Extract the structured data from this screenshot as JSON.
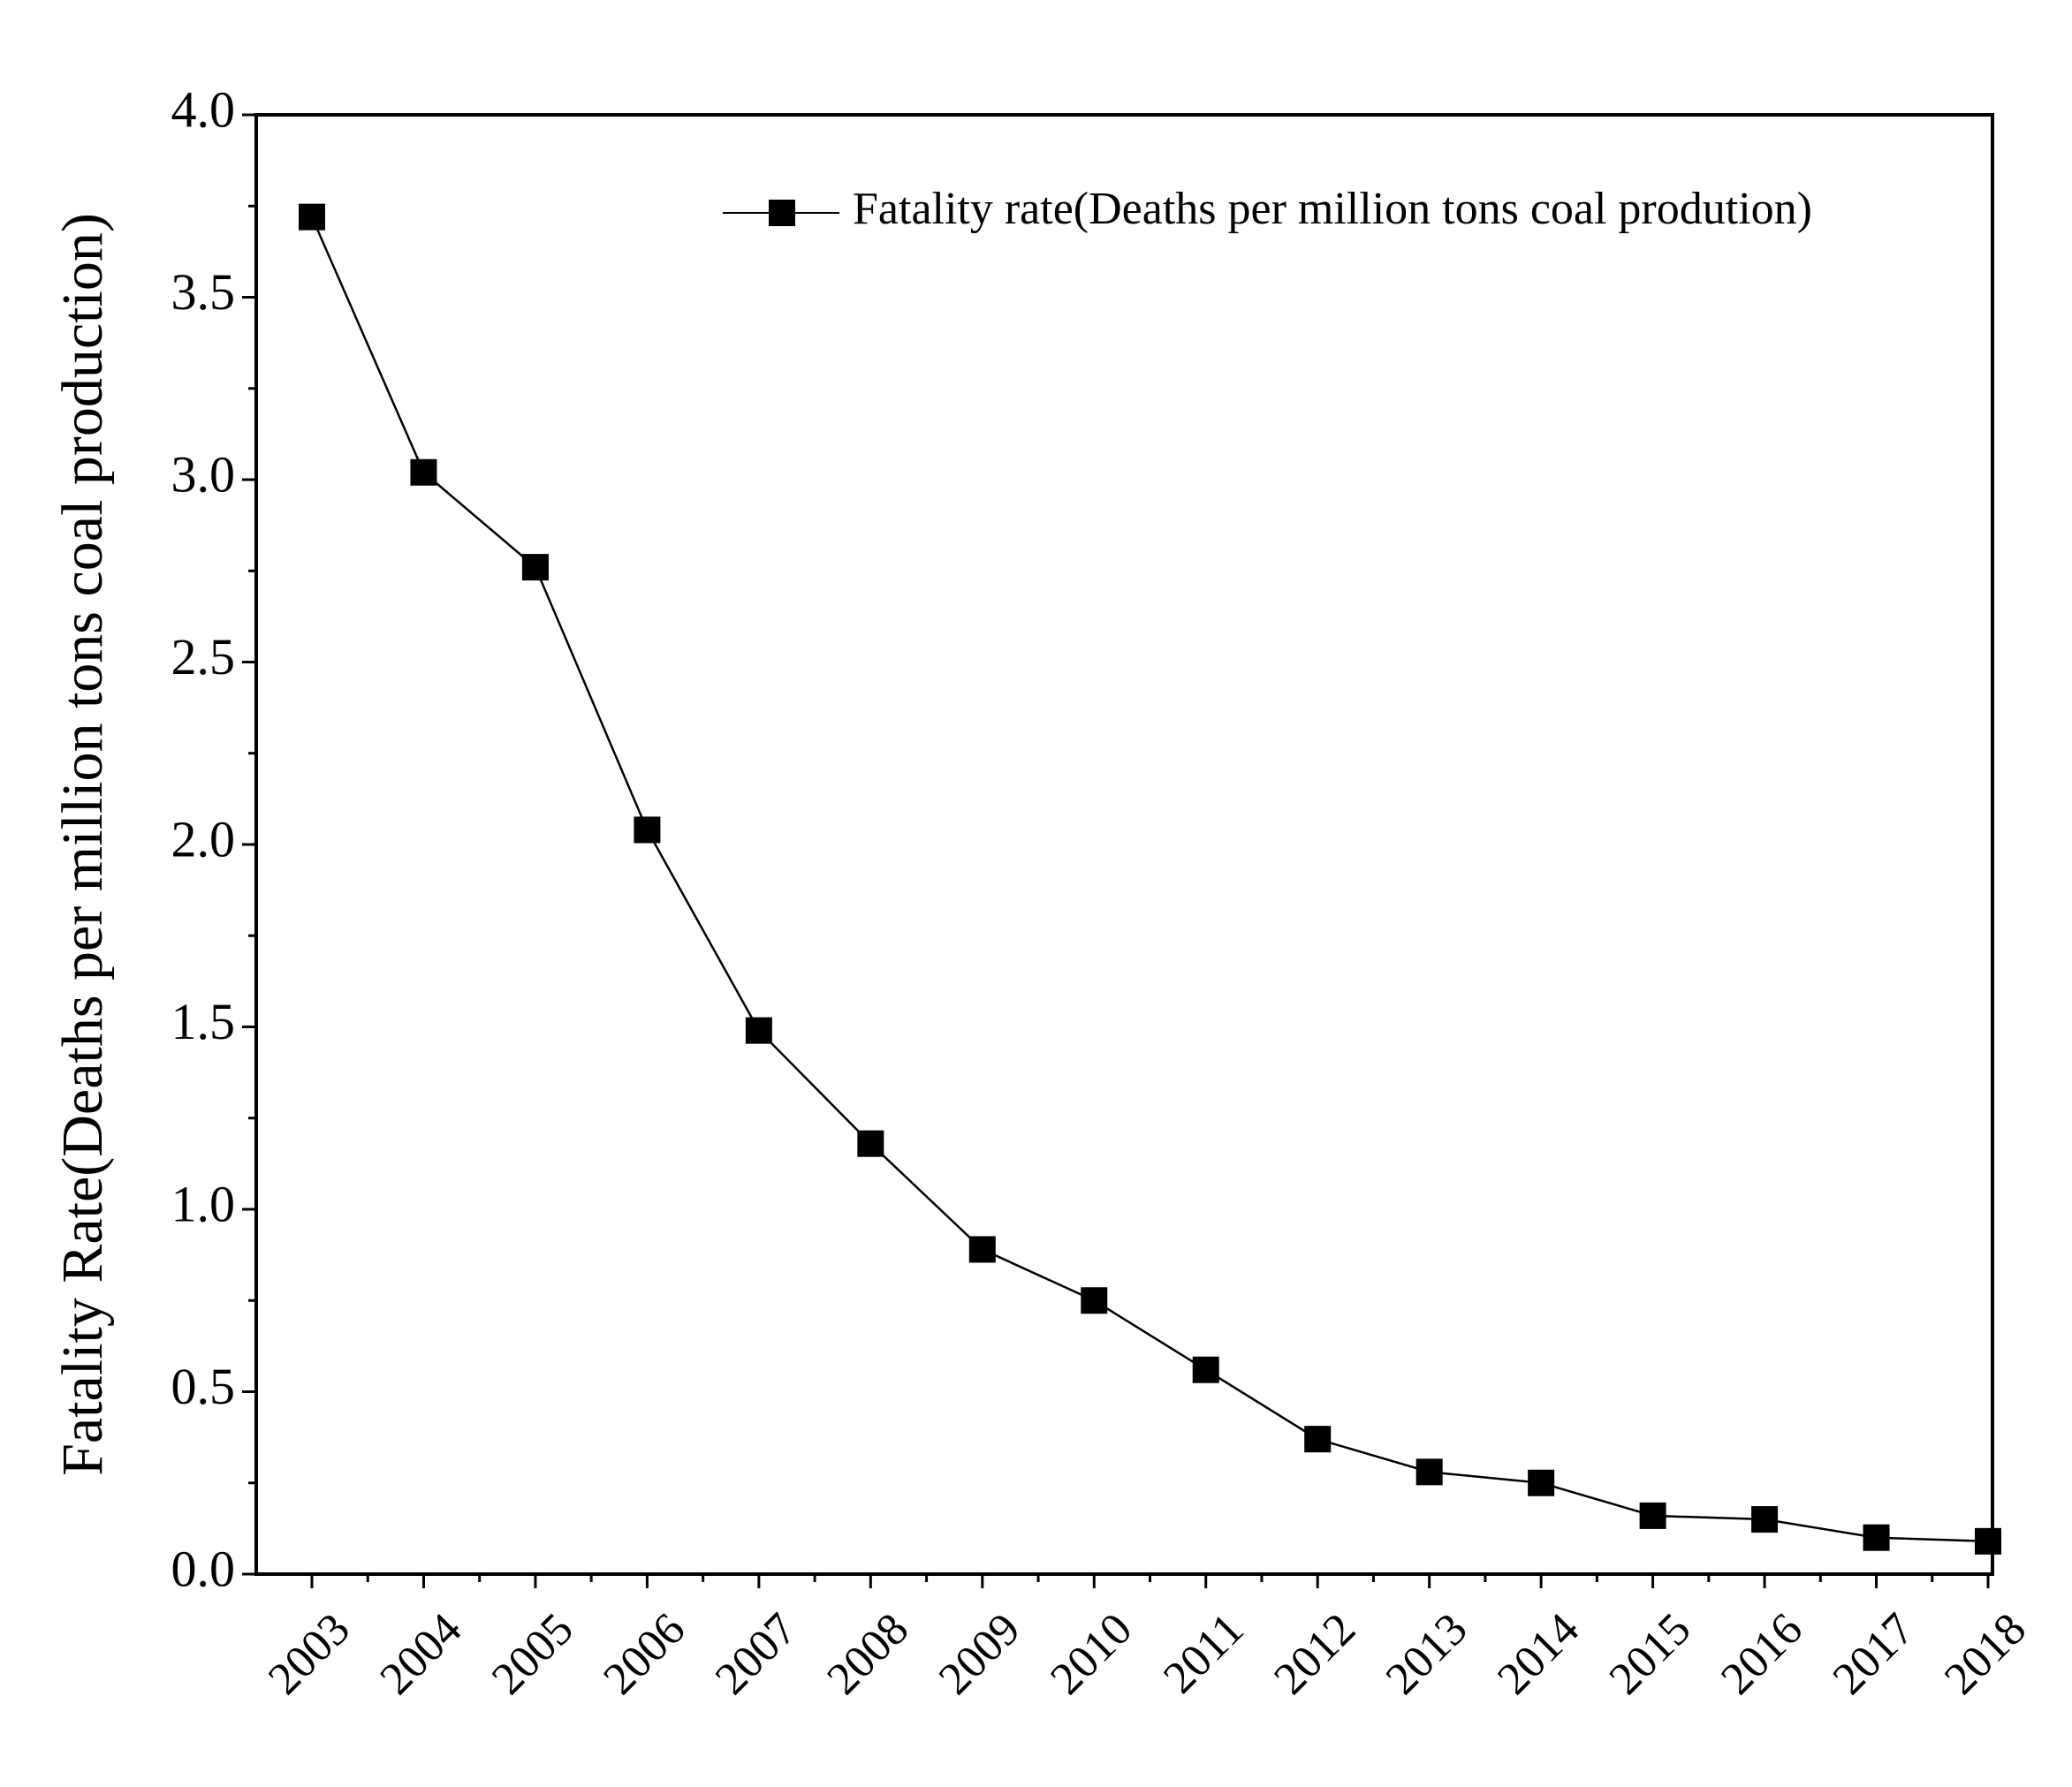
{
  "chart_data": {
    "type": "line",
    "title": "",
    "xlabel": "",
    "ylabel": "Fatality Rate(Deaths per million tons coal production)",
    "categories": [
      "2003",
      "2004",
      "2005",
      "2006",
      "2007",
      "2008",
      "2009",
      "2010",
      "2011",
      "2012",
      "2013",
      "2014",
      "2015",
      "2016",
      "2017",
      "2018"
    ],
    "series": [
      {
        "name": "Fatality rate(Deaths per million tons coal prodution)",
        "values": [
          3.72,
          3.02,
          2.76,
          2.04,
          1.49,
          1.18,
          0.89,
          0.75,
          0.56,
          0.37,
          0.28,
          0.25,
          0.16,
          0.15,
          0.1,
          0.09
        ],
        "marker": "square",
        "color": "#000000"
      }
    ],
    "ylim": [
      0,
      4.0
    ],
    "yticks": [
      "0.0",
      "0.5",
      "1.0",
      "1.5",
      "2.0",
      "2.5",
      "3.0",
      "3.5",
      "4.0"
    ],
    "ytick_values": [
      0,
      0.5,
      1.0,
      1.5,
      2.0,
      2.5,
      3.0,
      3.5,
      4.0
    ],
    "grid": false,
    "legend_position": "top-right"
  }
}
